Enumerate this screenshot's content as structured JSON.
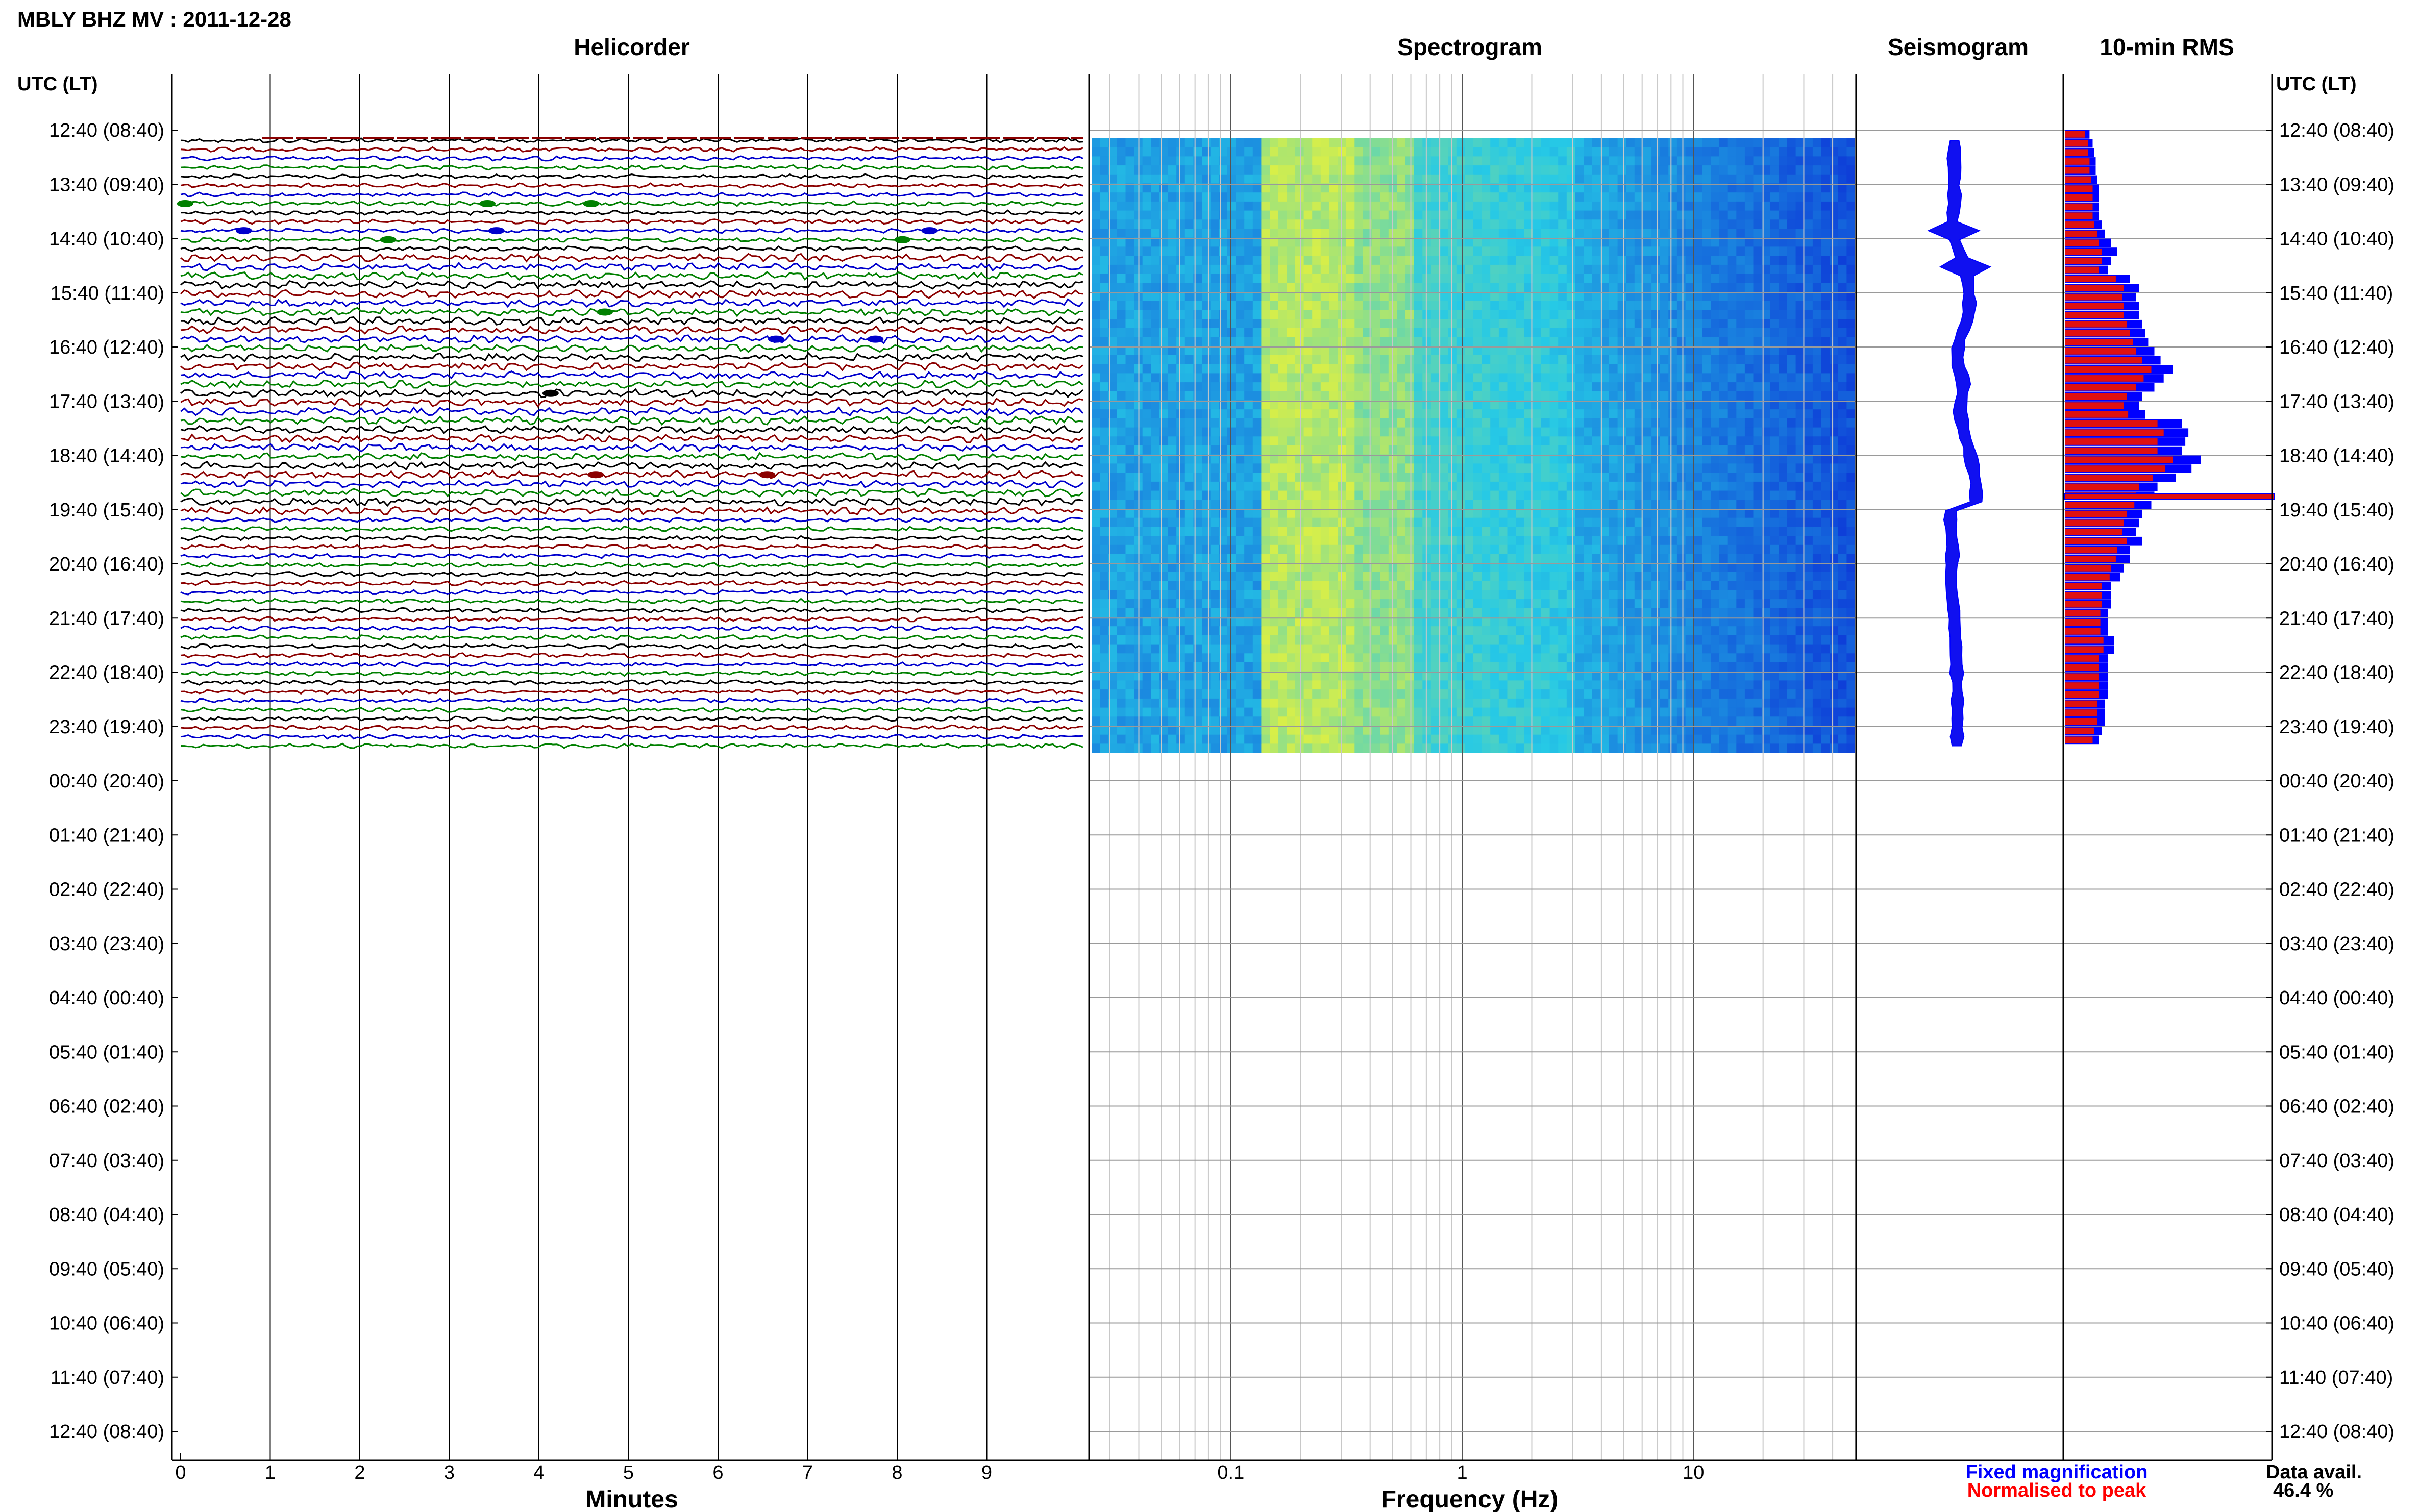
{
  "header": {
    "title": "MBLY BHZ MV : 2011-12-28"
  },
  "panels": {
    "helicorder": {
      "title": "Helicorder",
      "xlabel": "Minutes"
    },
    "spectrogram": {
      "title": "Spectrogram",
      "xlabel": "Frequency (Hz)"
    },
    "seismogram": {
      "title": "Seismogram"
    },
    "rms": {
      "title": "10-min RMS"
    }
  },
  "axis_titles": {
    "left": "UTC (LT)",
    "right": "UTC (LT)"
  },
  "time_labels": [
    "12:40 (08:40)",
    "13:40 (09:40)",
    "14:40 (10:40)",
    "15:40 (11:40)",
    "16:40 (12:40)",
    "17:40 (13:40)",
    "18:40 (14:40)",
    "19:40 (15:40)",
    "20:40 (16:40)",
    "21:40 (17:40)",
    "22:40 (18:40)",
    "23:40 (19:40)",
    "00:40 (20:40)",
    "01:40 (21:40)",
    "02:40 (22:40)",
    "03:40 (23:40)",
    "04:40 (00:40)",
    "05:40 (01:40)",
    "06:40 (02:40)",
    "07:40 (03:40)",
    "08:40 (04:40)",
    "09:40 (05:40)",
    "10:40 (06:40)",
    "11:40 (07:40)",
    "12:40 (08:40)"
  ],
  "legend": {
    "fixed": "Fixed magnification",
    "normalised": "Normalised to peak",
    "fixed_color": "#0000ff",
    "normalised_color": "#ff0000"
  },
  "data_avail": {
    "label": "Data avail.",
    "value": "46.4 %"
  },
  "colors": {
    "trace_cycle": [
      "#000000",
      "#8b0000",
      "#0000cd",
      "#008000"
    ],
    "spec_low": "#0a2ad6",
    "spec_mid": "#26c9e6",
    "spec_high": "#e8f23a"
  },
  "chart_data": [
    {
      "type": "line",
      "title": "Helicorder",
      "xlabel": "Minutes",
      "x_ticks": [
        "0",
        "1",
        "2",
        "3",
        "4",
        "5",
        "6",
        "7",
        "8",
        "9"
      ],
      "xlim": [
        0,
        10
      ],
      "rows_with_data": 68,
      "minutes_per_row": 10
    },
    {
      "type": "heatmap",
      "title": "Spectrogram",
      "xlabel": "Frequency (Hz)",
      "x_scale": "log",
      "x_ticks": [
        "0.1",
        "1",
        "10"
      ],
      "xlim": [
        0.025,
        50
      ],
      "peak_band_hz": [
        0.2,
        0.5
      ]
    },
    {
      "type": "line",
      "title": "Seismogram",
      "note_values": "median amplitude per 10-min window, relative units",
      "values": [
        0.2,
        0.2,
        0.18,
        0.2,
        0.2,
        0.18,
        0.2,
        0.2,
        0.16,
        0.14,
        0.18,
        0.2,
        0.3,
        0.4,
        0.5,
        0.55,
        0.58,
        0.6,
        0.62,
        0.6,
        0.55,
        0.45,
        0.35,
        0.3,
        0.28,
        0.3,
        0.4,
        0.45,
        0.42,
        0.38,
        0.35,
        0.4,
        0.45,
        0.5,
        0.6,
        0.65,
        0.7,
        0.75,
        0.8,
        0.8,
        0.8,
        0.1,
        0.08,
        0.1,
        0.12,
        0.15,
        0.14,
        0.12,
        0.1,
        0.1,
        0.12,
        0.15,
        0.18,
        0.2,
        0.2,
        0.22,
        0.24,
        0.24,
        0.25,
        0.26,
        0.27,
        0.28,
        0.28,
        0.28,
        0.28,
        0.27,
        0.27,
        0.26
      ]
    },
    {
      "type": "bar",
      "title": "10-min RMS",
      "series": [
        {
          "name": "Fixed magnification",
          "values": [
            0.16,
            0.18,
            0.19,
            0.2,
            0.2,
            0.21,
            0.22,
            0.22,
            0.22,
            0.22,
            0.24,
            0.26,
            0.3,
            0.34,
            0.3,
            0.28,
            0.42,
            0.48,
            0.46,
            0.48,
            0.48,
            0.5,
            0.52,
            0.54,
            0.58,
            0.62,
            0.7,
            0.64,
            0.58,
            0.5,
            0.48,
            0.52,
            0.76,
            0.8,
            0.78,
            0.76,
            0.88,
            0.82,
            0.72,
            0.6,
            0.58,
            0.56,
            0.5,
            0.48,
            0.46,
            0.5,
            0.42,
            0.42,
            0.38,
            0.36,
            0.3,
            0.3,
            0.3,
            0.28,
            0.28,
            0.28,
            0.32,
            0.32,
            0.28,
            0.28,
            0.28,
            0.28,
            0.28,
            0.26,
            0.26,
            0.26,
            0.24,
            0.22
          ]
        },
        {
          "name": "Normalised to peak",
          "values": [
            0.13,
            0.15,
            0.15,
            0.16,
            0.16,
            0.17,
            0.18,
            0.18,
            0.18,
            0.18,
            0.19,
            0.21,
            0.22,
            0.24,
            0.24,
            0.22,
            0.33,
            0.38,
            0.37,
            0.38,
            0.38,
            0.4,
            0.42,
            0.44,
            0.46,
            0.5,
            0.56,
            0.51,
            0.46,
            0.4,
            0.38,
            0.41,
            0.6,
            0.64,
            0.6,
            0.6,
            0.7,
            0.65,
            0.57,
            0.48,
            0.46,
            0.45,
            0.4,
            0.38,
            0.37,
            0.4,
            0.34,
            0.33,
            0.3,
            0.29,
            0.24,
            0.24,
            0.24,
            0.23,
            0.23,
            0.23,
            0.25,
            0.25,
            0.22,
            0.22,
            0.22,
            0.22,
            0.22,
            0.21,
            0.21,
            0.21,
            0.19,
            0.18
          ]
        }
      ],
      "peak_row": 68,
      "peak_value": 1.0
    }
  ]
}
